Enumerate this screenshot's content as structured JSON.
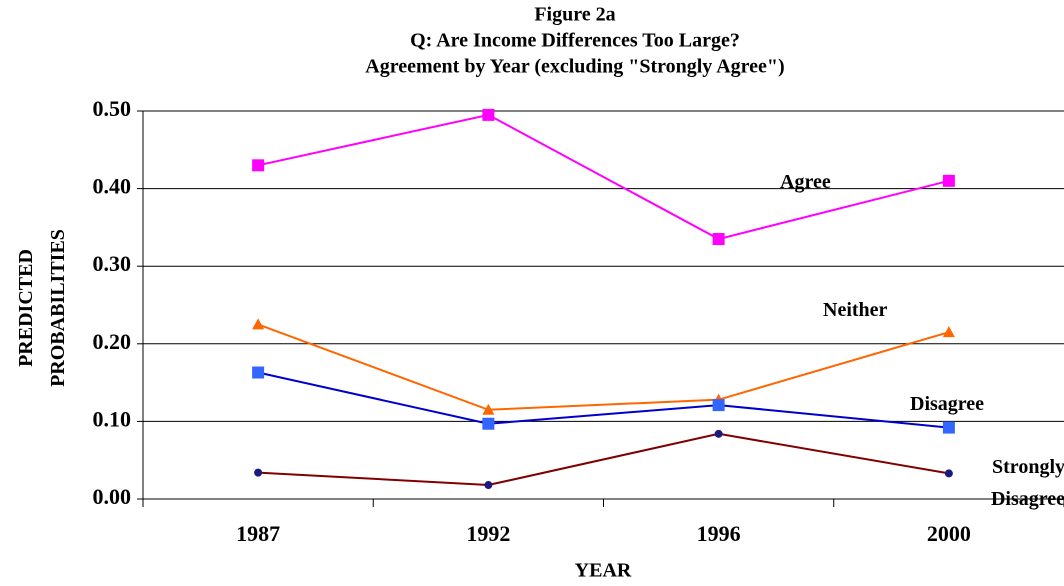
{
  "chart_data": {
    "type": "line",
    "title": [
      "Figure 2a",
      "Q: Are Income Differences Too Large?",
      "Agreement by Year (excluding \"Strongly Agree\")"
    ],
    "x_label": "YEAR",
    "y_label": "PREDICTED PROBABILITIES",
    "categories": [
      "1987",
      "1992",
      "1996",
      "2000"
    ],
    "series": [
      {
        "name": "Agree",
        "color": "#ff00ff",
        "marker": "square",
        "values": [
          0.43,
          0.495,
          0.335,
          0.41
        ]
      },
      {
        "name": "Neither",
        "color": "#ff6600",
        "marker": "triangle",
        "values": [
          0.225,
          0.115,
          0.128,
          0.215
        ]
      },
      {
        "name": "Disagree",
        "color": "#3366ff",
        "line_color": "#0000cc",
        "marker": "square",
        "values": [
          0.163,
          0.097,
          0.121,
          0.092
        ]
      },
      {
        "name": "Strongly Disagree",
        "color": "#1a1a80",
        "line_color": "#800000",
        "marker": "circle",
        "values": [
          0.034,
          0.018,
          0.084,
          0.033
        ]
      }
    ],
    "ylim": [
      0,
      0.5
    ],
    "yticks": [
      {
        "value": 0,
        "label": "0.00"
      },
      {
        "value": 0.1,
        "label": "0.10"
      },
      {
        "value": 0.2,
        "label": "0.20"
      },
      {
        "value": 0.3,
        "label": "0.30"
      },
      {
        "value": 0.4,
        "label": "0.40"
      },
      {
        "value": 0.5,
        "label": "0.50"
      }
    ],
    "grid": true
  }
}
